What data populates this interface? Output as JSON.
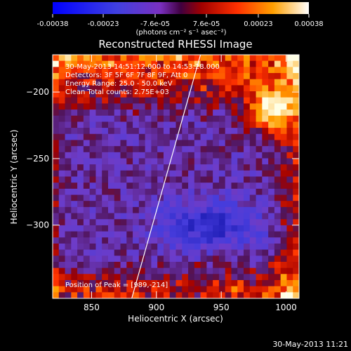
{
  "colorbar": {
    "ticks": [
      "-0.00038",
      "-0.00023",
      "-7.6e-05",
      "7.6e-05",
      "0.00023",
      "0.00038"
    ],
    "tick_values": [
      -0.00038,
      -0.00023,
      -7.6e-05,
      7.6e-05,
      0.00023,
      0.00038
    ],
    "unit_label": "(photons cm⁻² s⁻¹ asec⁻²)"
  },
  "chart_data": {
    "type": "heatmap",
    "title": "Reconstructed RHESSI Image",
    "xlabel": "Heliocentric X (arcsec)",
    "ylabel": "Heliocentric Y (arcsec)",
    "xlim": [
      820,
      1010
    ],
    "ylim": [
      -355,
      -172
    ],
    "xticks": [
      850,
      900,
      950,
      1000
    ],
    "yticks": [
      -200,
      -250,
      -300
    ],
    "xtick_labels": [
      "850",
      "900",
      "950",
      "1000"
    ],
    "ytick_labels": [
      "−200",
      "−250",
      "−300"
    ],
    "limb_line": [
      [
        881,
        -355
      ],
      [
        934,
        -172
      ]
    ],
    "annotations": [
      "30-May-2013 14:51:12.000 to 14:53:28.000",
      "Detectors: 3F 5F 6F 7F 8F 9F, Att 0",
      "Energy Range: 25.0 - 50.0 keV",
      "Clean    Total counts: 2.75E+03"
    ],
    "peak_label": "Position of Peak = [989,-214]",
    "peak": [
      989,
      -214
    ]
  },
  "footer_timestamp": "30-May-2013 11:21"
}
